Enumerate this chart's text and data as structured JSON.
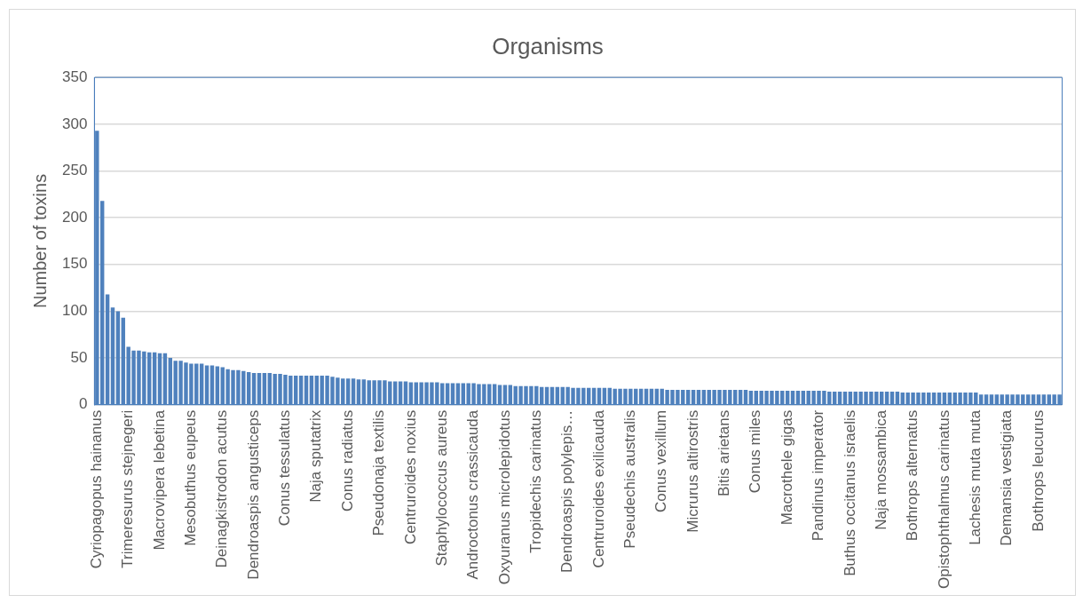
{
  "chart_data": {
    "type": "bar",
    "title": "Organisms",
    "ylabel": "Number of toxins",
    "categories": [
      "Cyriopagopus hainanus",
      null,
      null,
      null,
      null,
      null,
      "Trimeresurus stejnegeri",
      null,
      null,
      null,
      null,
      null,
      "Macrovipera lebetina",
      null,
      null,
      null,
      null,
      null,
      "Mesobuthus eupeus",
      null,
      null,
      null,
      null,
      null,
      "Deinagkistrodon acutus",
      null,
      null,
      null,
      null,
      null,
      "Dendroaspis angusticeps",
      null,
      null,
      null,
      null,
      null,
      "Conus tessulatus",
      null,
      null,
      null,
      null,
      null,
      "Naja sputatrix",
      null,
      null,
      null,
      null,
      null,
      "Conus radiatus",
      null,
      null,
      null,
      null,
      null,
      "Pseudonaja textilis",
      null,
      null,
      null,
      null,
      null,
      "Centruroides noxius",
      null,
      null,
      null,
      null,
      null,
      "Staphylococcus aureus",
      null,
      null,
      null,
      null,
      null,
      "Androctonus crassicauda",
      null,
      null,
      null,
      null,
      null,
      "Oxyuranus microlepidotus",
      null,
      null,
      null,
      null,
      null,
      "Tropidechis carinatus",
      null,
      null,
      null,
      null,
      null,
      "Dendroaspis polylepis…",
      null,
      null,
      null,
      null,
      null,
      "Centruroides exilicauda",
      null,
      null,
      null,
      null,
      null,
      "Pseudechis australis",
      null,
      null,
      null,
      null,
      null,
      "Conus vexillum",
      null,
      null,
      null,
      null,
      null,
      "Micrurus altirostris",
      null,
      null,
      null,
      null,
      null,
      "Bitis arietans",
      null,
      null,
      null,
      null,
      null,
      "Conus miles",
      null,
      null,
      null,
      null,
      null,
      "Macrothele gigas",
      null,
      null,
      null,
      null,
      null,
      "Pandinus imperator",
      null,
      null,
      null,
      null,
      null,
      "Buthus occitanus israelis",
      null,
      null,
      null,
      null,
      null,
      "Naja mossambica",
      null,
      null,
      null,
      null,
      null,
      "Bothrops alternatus",
      null,
      null,
      null,
      null,
      null,
      "Opistophthalmus carinatus",
      null,
      null,
      null,
      null,
      null,
      "Lachesis muta muta",
      null,
      null,
      null,
      null,
      null,
      "Demansia vestigiata",
      null,
      null,
      null,
      null,
      null,
      "Bothrops leucurus",
      null,
      null,
      null,
      null
    ],
    "values": [
      293,
      218,
      118,
      104,
      100,
      93,
      62,
      58,
      58,
      57,
      56,
      56,
      55,
      55,
      50,
      47,
      47,
      45,
      44,
      44,
      44,
      42,
      42,
      41,
      40,
      38,
      37,
      37,
      36,
      35,
      34,
      34,
      34,
      34,
      33,
      33,
      32,
      31,
      31,
      31,
      31,
      31,
      31,
      31,
      31,
      30,
      29,
      28,
      28,
      28,
      27,
      27,
      26,
      26,
      26,
      26,
      25,
      25,
      25,
      25,
      24,
      24,
      24,
      24,
      24,
      24,
      23,
      23,
      23,
      23,
      23,
      23,
      23,
      22,
      22,
      22,
      22,
      21,
      21,
      21,
      20,
      20,
      20,
      20,
      20,
      19,
      19,
      19,
      19,
      19,
      19,
      18,
      18,
      18,
      18,
      18,
      18,
      18,
      18,
      17,
      17,
      17,
      17,
      17,
      17,
      17,
      17,
      17,
      17,
      16,
      16,
      16,
      16,
      16,
      16,
      16,
      16,
      16,
      16,
      16,
      16,
      16,
      16,
      16,
      16,
      15,
      15,
      15,
      15,
      15,
      15,
      15,
      15,
      15,
      15,
      15,
      15,
      15,
      15,
      15,
      14,
      14,
      14,
      14,
      14,
      14,
      14,
      14,
      14,
      14,
      14,
      14,
      14,
      14,
      13,
      13,
      13,
      13,
      13,
      13,
      13,
      13,
      13,
      13,
      13,
      13,
      13,
      13,
      13,
      11,
      11,
      11,
      11,
      11,
      11,
      11,
      11,
      11,
      11,
      11,
      11,
      11,
      11,
      11,
      11
    ],
    "color": "#4f81bd",
    "ylim": [
      0,
      350
    ],
    "yticks": [
      0,
      50,
      100,
      150,
      200,
      250,
      300,
      350
    ],
    "grid": "y"
  }
}
